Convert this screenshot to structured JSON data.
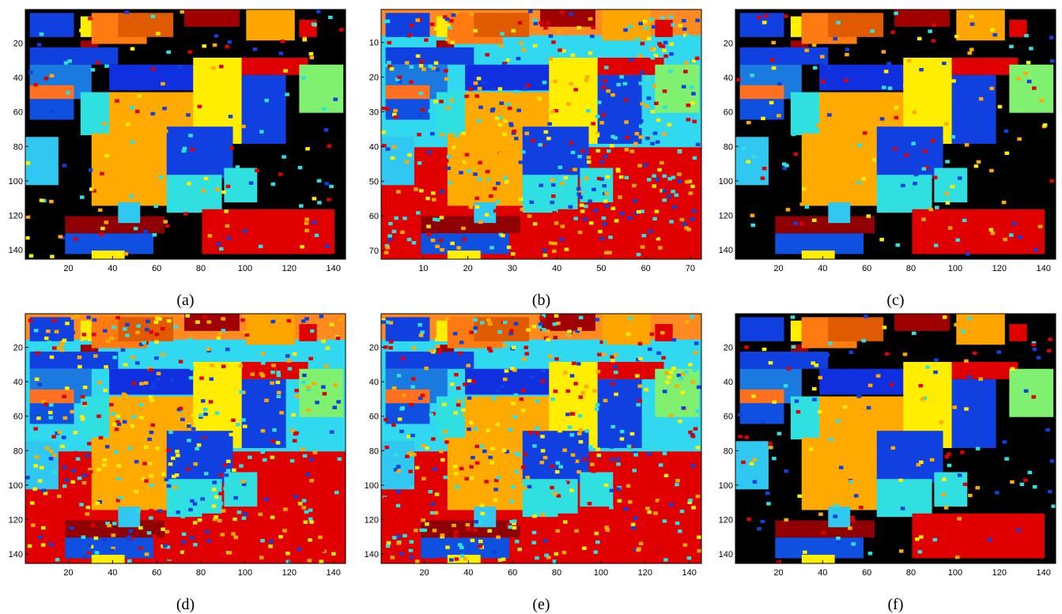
{
  "panels": [
    {
      "caption": "(a)",
      "xlim": [
        0.5,
        145.5
      ],
      "ylim": [
        0.5,
        145.5
      ],
      "xticks": [
        20,
        40,
        60,
        80,
        100,
        120,
        140
      ],
      "yticks": [
        20,
        40,
        60,
        80,
        100,
        120,
        140
      ]
    },
    {
      "caption": "(b)",
      "xlim": [
        0.5,
        72.5
      ],
      "ylim": [
        0.5,
        72.5
      ],
      "xticks": [
        10,
        20,
        30,
        40,
        50,
        60,
        70
      ],
      "yticks": [
        10,
        20,
        30,
        40,
        50,
        60,
        70
      ]
    },
    {
      "caption": "(c)",
      "xlim": [
        0.5,
        145.5
      ],
      "ylim": [
        0.5,
        145.5
      ],
      "xticks": [
        20,
        40,
        60,
        80,
        100,
        120,
        140
      ],
      "yticks": [
        20,
        40,
        60,
        80,
        100,
        120,
        140
      ]
    },
    {
      "caption": "(d)",
      "xlim": [
        0.5,
        145.5
      ],
      "ylim": [
        0.5,
        145.5
      ],
      "xticks": [
        20,
        40,
        60,
        80,
        100,
        120,
        140
      ],
      "yticks": [
        20,
        40,
        60,
        80,
        100,
        120,
        140
      ]
    },
    {
      "caption": "(e)",
      "xlim": [
        0.5,
        145.5
      ],
      "ylim": [
        0.5,
        145.5
      ],
      "xticks": [
        20,
        40,
        60,
        80,
        100,
        120,
        140
      ],
      "yticks": [
        20,
        40,
        60,
        80,
        100,
        120,
        140
      ]
    },
    {
      "caption": "(f)",
      "xlim": [
        0.5,
        145.5
      ],
      "ylim": [
        0.5,
        145.5
      ],
      "xticks": [
        20,
        40,
        60,
        80,
        100,
        120,
        140
      ],
      "yticks": [
        20,
        40,
        60,
        80,
        100,
        120,
        140
      ]
    }
  ]
}
